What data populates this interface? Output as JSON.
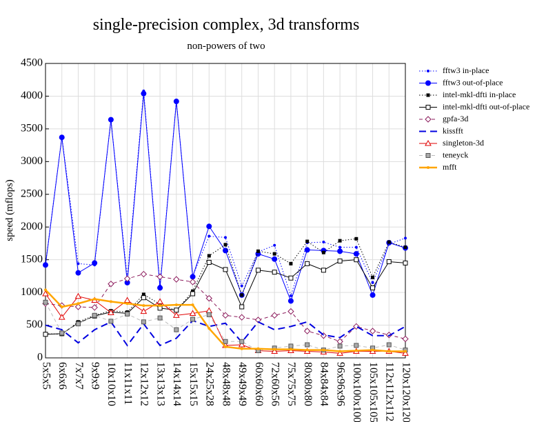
{
  "chart_data": {
    "type": "line",
    "title": "single-precision complex, 3d transforms",
    "subtitle": "non-powers of two",
    "y_label": "speed (mflops)",
    "categories": [
      "5x5x5",
      "6x6x6",
      "7x7x7",
      "9x9x9",
      "10x10x10",
      "11x11x11",
      "12x12x12",
      "13x13x13",
      "14x14x14",
      "15x15x15",
      "24x25x28",
      "48x48x48",
      "49x49x49",
      "60x60x60",
      "72x60x56",
      "75x75x75",
      "80x80x80",
      "84x84x84",
      "96x96x96",
      "100x100x100",
      "105x105x105",
      "112x112x112",
      "120x120x120"
    ],
    "ylim": [
      0,
      4500
    ],
    "yticks": [
      0,
      500,
      1000,
      1500,
      2000,
      2500,
      3000,
      3500,
      4000,
      4500
    ],
    "grid": true,
    "legend": "right",
    "series": [
      {
        "name": "fftw3 in-place",
        "color": "#0000ff",
        "marker": "dot",
        "dash": "dotted",
        "values": [
          1430,
          3380,
          1440,
          1420,
          3640,
          1220,
          4080,
          1100,
          3930,
          1250,
          1860,
          1840,
          1100,
          1620,
          1720,
          950,
          1760,
          1770,
          1690,
          1690,
          1150,
          1740,
          1830
        ]
      },
      {
        "name": "fftw3 out-of-place",
        "color": "#0000ff",
        "marker": "circle",
        "dash": "solid",
        "values": [
          1420,
          3370,
          1300,
          1450,
          3640,
          1150,
          4040,
          1070,
          3920,
          1240,
          2010,
          1640,
          960,
          1590,
          1510,
          870,
          1650,
          1640,
          1630,
          1590,
          960,
          1760,
          1680
        ]
      },
      {
        "name": "intel-mkl-dfti in-place",
        "color": "#000000",
        "marker": "square",
        "dash": "dotted",
        "values": [
          370,
          360,
          550,
          650,
          720,
          700,
          970,
          820,
          720,
          1020,
          1560,
          1730,
          960,
          1630,
          1590,
          1440,
          1780,
          1610,
          1790,
          1820,
          1230,
          1770,
          1690
        ]
      },
      {
        "name": "intel-mkl-dfti out-of-place",
        "color": "#000000",
        "marker": "open-square",
        "dash": "solid",
        "values": [
          360,
          370,
          530,
          640,
          700,
          680,
          920,
          760,
          730,
          980,
          1460,
          1350,
          780,
          1340,
          1310,
          1220,
          1440,
          1340,
          1480,
          1500,
          1070,
          1470,
          1450
        ]
      },
      {
        "name": "gpfa-3d",
        "color": "#8b1a5b",
        "marker": "open-diamond",
        "dash": "dashed",
        "values": [
          830,
          800,
          780,
          770,
          1130,
          1210,
          1280,
          1240,
          1200,
          1160,
          910,
          650,
          620,
          580,
          650,
          710,
          410,
          340,
          250,
          480,
          410,
          350,
          290
        ]
      },
      {
        "name": "kissfft",
        "color": "#0000e0",
        "marker": "none",
        "dash": "longdash",
        "values": [
          500,
          430,
          230,
          430,
          550,
          190,
          520,
          190,
          300,
          570,
          480,
          530,
          240,
          550,
          430,
          480,
          550,
          350,
          310,
          480,
          340,
          340,
          480
        ]
      },
      {
        "name": "singleton-3d",
        "color": "#e00000",
        "marker": "open-triangle",
        "dash": "solid",
        "values": [
          980,
          620,
          940,
          880,
          690,
          880,
          710,
          860,
          650,
          680,
          720,
          190,
          200,
          110,
          100,
          110,
          100,
          90,
          70,
          100,
          100,
          100,
          70
        ]
      },
      {
        "name": "teneyck",
        "color": "#bbbbbb",
        "marker": "gray-square",
        "dash": "dashed",
        "values": [
          850,
          380,
          520,
          650,
          560,
          670,
          550,
          610,
          430,
          590,
          660,
          250,
          250,
          110,
          150,
          180,
          200,
          120,
          180,
          190,
          150,
          200,
          120
        ]
      },
      {
        "name": "mfft",
        "color": "#ffa500",
        "marker": "dot",
        "dash": "thick",
        "values": [
          1040,
          780,
          830,
          900,
          860,
          830,
          800,
          800,
          810,
          810,
          450,
          170,
          140,
          140,
          130,
          130,
          120,
          120,
          100,
          110,
          120,
          100,
          100
        ]
      }
    ]
  }
}
